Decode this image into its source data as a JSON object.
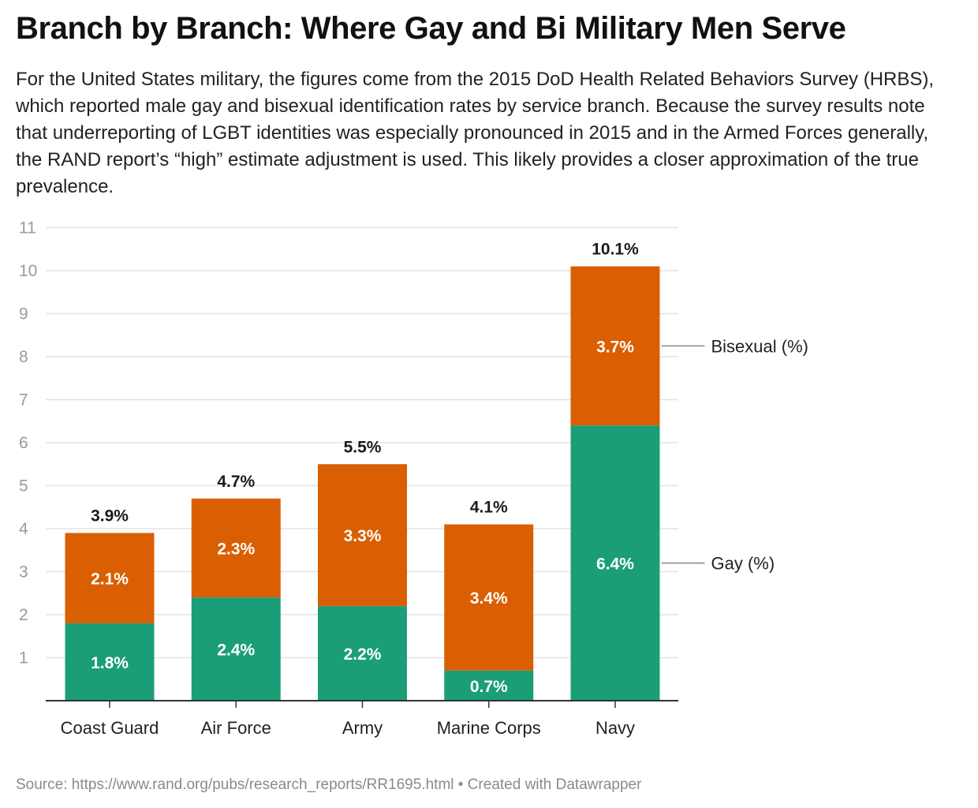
{
  "header": {
    "title": "Branch by Branch: Where Gay and Bi Military Men Serve",
    "subtitle": "For the United States military, the figures come from the 2015 DoD Health Related Behaviors Survey (HRBS), which reported male gay and bisexual identification rates by service branch. Because the survey results note that underreporting of LGBT identities was especially pronounced in 2015 and in the Armed Forces generally, the RAND report’s “high” estimate adjustment is used. This likely provides a closer approximation of the true prevalence."
  },
  "footer": {
    "source": "Source: https://www.rand.org/pubs/research_reports/RR1695.html • Created with Datawrapper"
  },
  "chart_data": {
    "type": "bar",
    "stacked": true,
    "categories": [
      "Coast Guard",
      "Air Force",
      "Army",
      "Marine Corps",
      "Navy"
    ],
    "series": [
      {
        "name": "Gay (%)",
        "values": [
          1.8,
          2.4,
          2.2,
          0.7,
          6.4
        ],
        "labels": [
          "1.8%",
          "2.4%",
          "2.2%",
          "0.7%",
          "6.4%"
        ],
        "color": "#1b9e77"
      },
      {
        "name": "Bisexual (%)",
        "values": [
          2.1,
          2.3,
          3.3,
          3.4,
          3.7
        ],
        "labels": [
          "2.1%",
          "2.3%",
          "3.3%",
          "3.4%",
          "3.7%"
        ],
        "color": "#d95f02"
      }
    ],
    "totals": [
      3.9,
      4.7,
      5.5,
      4.1,
      10.1
    ],
    "total_labels": [
      "3.9%",
      "4.7%",
      "5.5%",
      "4.1%",
      "10.1%"
    ],
    "yticks": [
      "1",
      "2",
      "3",
      "4",
      "5",
      "6",
      "7",
      "8",
      "9",
      "10",
      "11"
    ],
    "ylim": [
      0,
      11
    ],
    "grid": true,
    "legend": "right, inline labels"
  }
}
